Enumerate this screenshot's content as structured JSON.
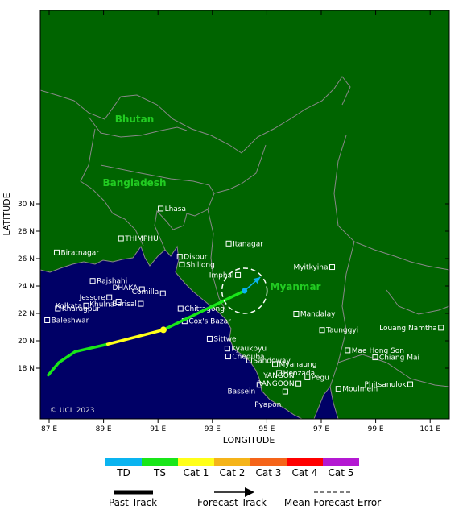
{
  "axes": {
    "xlabel": "LONGITUDE",
    "ylabel": "LATITUDE",
    "x_ticks": [
      "87 E",
      "89 E",
      "91 E",
      "93 E",
      "95 E",
      "97 E",
      "99 E",
      "101 E"
    ],
    "y_ticks": [
      "18 N",
      "20 N",
      "22 N",
      "24 N",
      "26 N",
      "28 N",
      "30 N"
    ]
  },
  "copyright": "© UCL 2023",
  "countries": [
    {
      "name": "Bhutan"
    },
    {
      "name": "Bangladesh"
    },
    {
      "name": "Myanmar"
    }
  ],
  "cities": [
    {
      "name": "Lhasa",
      "lon": 91.1,
      "lat": 29.65
    },
    {
      "name": "THIMPHU",
      "lon": 89.64,
      "lat": 27.47
    },
    {
      "name": "Itanagar",
      "lon": 93.6,
      "lat": 27.1
    },
    {
      "name": "Biratnagar",
      "lon": 87.28,
      "lat": 26.45
    },
    {
      "name": "Dispur",
      "lon": 91.8,
      "lat": 26.14
    },
    {
      "name": "Shillong",
      "lon": 91.88,
      "lat": 25.57
    },
    {
      "name": "Myitkyina",
      "lon": 97.4,
      "lat": 25.38
    },
    {
      "name": "Imphal",
      "lon": 93.94,
      "lat": 24.8
    },
    {
      "name": "Rajshahi",
      "lon": 88.6,
      "lat": 24.37
    },
    {
      "name": "DHAKA",
      "lon": 90.41,
      "lat": 23.76
    },
    {
      "name": "Comilla",
      "lon": 91.18,
      "lat": 23.46
    },
    {
      "name": "Jessore",
      "lon": 89.21,
      "lat": 23.17
    },
    {
      "name": "Khulna",
      "lon": 89.55,
      "lat": 22.85
    },
    {
      "name": "Kolkata",
      "lon": 88.36,
      "lat": 22.57
    },
    {
      "name": "Barisal",
      "lon": 90.37,
      "lat": 22.7
    },
    {
      "name": "Kharagpur",
      "lon": 87.32,
      "lat": 22.35
    },
    {
      "name": "Chittagong",
      "lon": 91.83,
      "lat": 22.35
    },
    {
      "name": "Mandalay",
      "lon": 96.08,
      "lat": 21.97
    },
    {
      "name": "Baleshwar",
      "lon": 86.93,
      "lat": 21.5
    },
    {
      "name": "Cox's Bazar",
      "lon": 91.98,
      "lat": 21.43
    },
    {
      "name": "Louang Namtha",
      "lon": 101.4,
      "lat": 20.95
    },
    {
      "name": "Taunggyi",
      "lon": 97.03,
      "lat": 20.78
    },
    {
      "name": "Sittwe",
      "lon": 92.9,
      "lat": 20.15
    },
    {
      "name": "Mae Hong Son",
      "lon": 97.97,
      "lat": 19.3
    },
    {
      "name": "Kyaukpyu",
      "lon": 93.55,
      "lat": 19.43
    },
    {
      "name": "Cheduba",
      "lon": 93.58,
      "lat": 18.85
    },
    {
      "name": "Chiang Mai",
      "lon": 98.98,
      "lat": 18.79
    },
    {
      "name": "Sandoway",
      "lon": 94.35,
      "lat": 18.57
    },
    {
      "name": "Myanaung",
      "lon": 95.3,
      "lat": 18.3
    },
    {
      "name": "Henzada",
      "lon": 95.45,
      "lat": 17.65
    },
    {
      "name": "Pegu",
      "lon": 96.49,
      "lat": 17.33
    },
    {
      "name": "YANGON",
      "lon": 96.16,
      "lat": 16.87
    },
    {
      "name": "RANGOON",
      "lon": 96.16,
      "lat": 16.87
    },
    {
      "name": "Phitsanulok",
      "lon": 100.27,
      "lat": 16.82
    },
    {
      "name": "Bassein",
      "lon": 94.73,
      "lat": 16.78
    },
    {
      "name": "Moulmein",
      "lon": 97.63,
      "lat": 16.49
    },
    {
      "name": "Pyapon",
      "lon": 95.68,
      "lat": 16.29
    }
  ],
  "track": {
    "past": [
      {
        "lon": 86.97,
        "lat": 17.5,
        "cat": "TS"
      },
      {
        "lon": 87.35,
        "lat": 18.4,
        "cat": "TS"
      },
      {
        "lon": 87.95,
        "lat": 19.2,
        "cat": "TS"
      },
      {
        "lon": 89.15,
        "lat": 19.75,
        "cat": "TS"
      },
      {
        "lon": 91.2,
        "lat": 20.8,
        "cat": "Cat 1"
      },
      {
        "lon": 94.18,
        "lat": 23.65,
        "cat": "TS"
      }
    ],
    "forecast": [
      {
        "lon": 94.18,
        "lat": 23.65,
        "cat": "TD"
      },
      {
        "lon": 94.76,
        "lat": 24.65,
        "cat": "TD"
      }
    ],
    "current_position": {
      "lon": 94.18,
      "lat": 23.65
    },
    "mean_error_circle_center": {
      "lon": 94.18,
      "lat": 23.65
    }
  },
  "legend": {
    "categories": [
      {
        "label": "TD",
        "color": "#0ab4f0"
      },
      {
        "label": "TS",
        "color": "#19e619"
      },
      {
        "label": "Cat 1",
        "color": "#ffff19"
      },
      {
        "label": "Cat 2",
        "color": "#f5b419"
      },
      {
        "label": "Cat 3",
        "color": "#f56419"
      },
      {
        "label": "Cat 4",
        "color": "#ff0000"
      },
      {
        "label": "Cat 5",
        "color": "#b419d2"
      }
    ],
    "past_track": "Past Track",
    "forecast_track": "Forecast Track",
    "mean_forecast_error": "Mean Forecast Error"
  },
  "colors": {
    "land": "#006400",
    "sea": "#000066",
    "border": "#888888"
  }
}
